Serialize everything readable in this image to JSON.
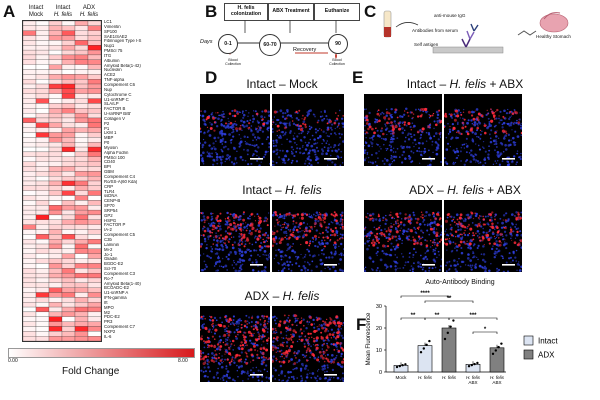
{
  "panels": {
    "a": "A",
    "b": "B",
    "c": "C",
    "d": "D",
    "e": "E",
    "f": "F"
  },
  "heatmap": {
    "columns": [
      {
        "line1": "Intact",
        "line2": "Mock"
      },
      {
        "line1": "Intact",
        "line2": "H. felis"
      },
      {
        "line1": "ADX",
        "line2": "H. felis"
      }
    ],
    "legend_min": "0.00",
    "legend_max": "8.00",
    "legend_title": "Fold Change",
    "low_color": "#ffffff",
    "high_color": "#d7191c",
    "antigens": [
      "LC1",
      "Vimentin",
      "SP100",
      "SAE1/SAE2",
      "Fibrinogen Type I-S",
      "Nup1",
      "PMScl 75",
      "tTG",
      "Albumin",
      "Amyloid Beta(1-42)",
      "Nucleolin",
      "ACE2",
      "TNF-alpha",
      "Complement C6",
      "Nup",
      "Cytochrome C",
      "U1-snRNP C",
      "SLA/LP",
      "FACTOR B",
      "U-snRNP B/B'",
      "Collagen V",
      "P2",
      "P1",
      "LKM 1",
      "MBP",
      "P0",
      "Myosin",
      "Alpha Fodrin",
      "PMScl 100",
      "CD40",
      "BPI",
      "GBM",
      "Complement C4",
      "Ro/SS-A(60 Kda)",
      "CRP",
      "TLR4",
      "ssDNA",
      "CENP-B",
      "SP70",
      "SRP54",
      "GP2",
      "HSPG",
      "FACTOR P",
      "IA-2",
      "Complement C5",
      "C3b",
      "Laminin",
      "Mi-2",
      "Jo-1",
      "Gliadin",
      "BGDC-E2",
      "Scl-70",
      "Complement C3",
      "Ro-7",
      "Amyloid Beta(1-40)",
      "BCOADC-E2",
      "U1-snRNP A",
      "IFN-gamma",
      "Ift",
      "MPO",
      "M2",
      "PDC-E2",
      "PR3",
      "Complement C7",
      "NXP2",
      "IL-6"
    ]
  },
  "timeline": {
    "box1": "H. felis colonization",
    "box2": "ABX Treatment",
    "box3": "Euthanize",
    "days_label": "Days",
    "tp1": "0-1",
    "tp2": "60-70",
    "tp3": "90",
    "recovery": "Recovery",
    "blood1": "Blood Collection",
    "blood2": "Blood Collection"
  },
  "schematic": {
    "igg": "anti-mouse IgG",
    "antibodies": "Antibodies from serum",
    "self_antigen": "Self antigen",
    "stomach": "Healthy Stomach"
  },
  "micro_titles": {
    "d1_a": "Intact – Mock",
    "d2_a": "Intact – ",
    "d2_b": "H. felis",
    "d3_a": "ADX – ",
    "d3_b": "H. felis",
    "e1_a": "Intact – ",
    "e1_b": "H. felis",
    "e1_c": " + ABX",
    "e2_a": "ADX – ",
    "e2_b": "H. felis",
    "e2_c": " + ABX"
  },
  "chart_data": {
    "type": "bar",
    "title": "Auto-Antibody Binding",
    "ylabel": "Mean Fluorescence",
    "ylim": [
      0,
      30
    ],
    "yticks": [
      0,
      10,
      20,
      30
    ],
    "categories": [
      "Mock",
      "H. felis",
      "H. felis",
      "H. felis + ABX",
      "H. felis + ABX"
    ],
    "groups": [
      "Intact",
      "Intact",
      "ADX",
      "Intact",
      "ADX"
    ],
    "values": [
      3,
      12,
      20,
      3.5,
      11
    ],
    "legend": [
      {
        "name": "Intact",
        "color": "#dce4f2"
      },
      {
        "name": "ADX",
        "color": "#808080"
      }
    ],
    "significance": [
      "****",
      "**",
      "**",
      "**",
      "***",
      "*"
    ]
  }
}
